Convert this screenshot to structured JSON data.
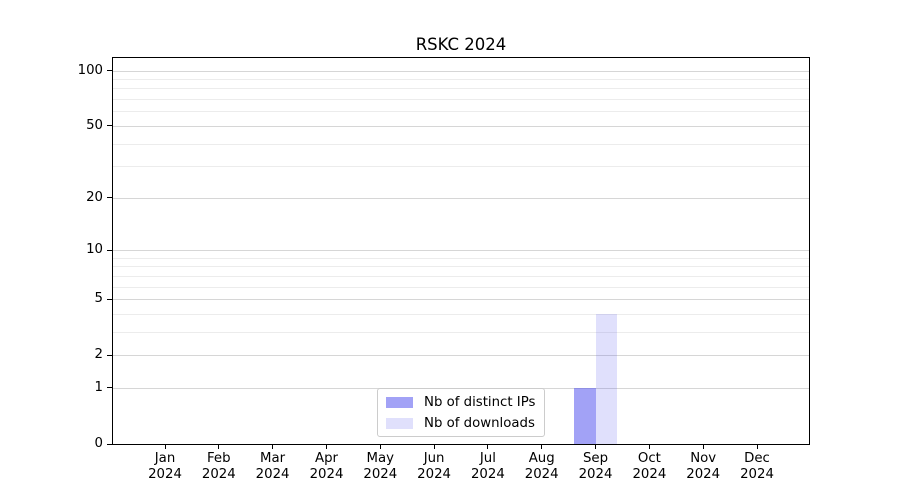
{
  "chart_data": {
    "type": "bar",
    "title": "RSKC 2024",
    "categories": [
      "Jan",
      "Feb",
      "Mar",
      "Apr",
      "May",
      "Jun",
      "Jul",
      "Aug",
      "Sep",
      "Oct",
      "Nov",
      "Dec"
    ],
    "category_year": "2024",
    "series": [
      {
        "name": "Nb of distinct IPs",
        "color": "#5555ee",
        "alpha": 0.55,
        "values": [
          0,
          0,
          0,
          0,
          0,
          0,
          0,
          0,
          1,
          0,
          0,
          0
        ]
      },
      {
        "name": "Nb of downloads",
        "color": "#5555ee",
        "alpha": 0.18,
        "values": [
          0,
          0,
          0,
          0,
          0,
          0,
          0,
          0,
          4,
          0,
          0,
          0
        ]
      }
    ],
    "y_scale": "log1p",
    "ylim": [
      0,
      117
    ],
    "y_major_ticks": [
      0,
      1,
      2,
      5,
      10,
      20,
      50,
      100
    ],
    "y_major_tick_labels": [
      "0",
      "1",
      "2",
      "5",
      "10",
      "20",
      "50",
      "100"
    ],
    "y_minor_ticks": [
      3,
      4,
      6,
      7,
      8,
      9,
      30,
      40,
      60,
      70,
      80,
      90
    ],
    "grid": true,
    "grid_major_color": "#d6d6d6",
    "grid_minor_color": "#ececec",
    "spine_color": "#000000",
    "legend_position": "lower center",
    "legend_entries": [
      "Nb of distinct IPs",
      "Nb of downloads"
    ],
    "xlabel": "",
    "ylabel": ""
  }
}
